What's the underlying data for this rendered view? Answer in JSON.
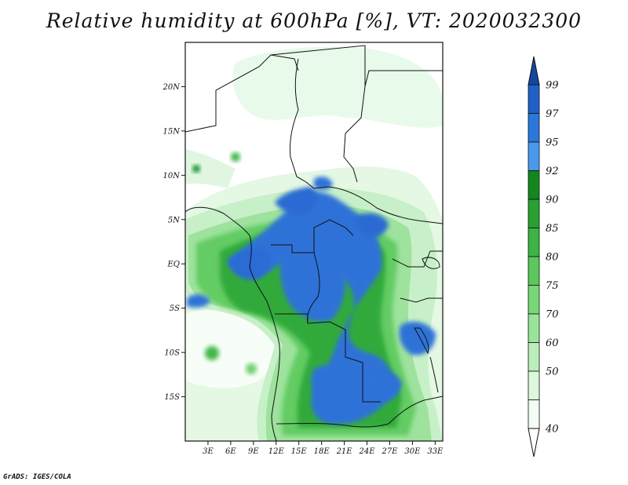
{
  "title": "Relative humidity at 600hPa [%], VT: 2020032300",
  "credit": "GrADS: IGES/COLA",
  "map": {
    "lon_range": [
      0,
      34
    ],
    "lat_range": [
      -20,
      25
    ],
    "lat_labels": [
      "20N",
      "15N",
      "10N",
      "5N",
      "EQ",
      "5S",
      "10S",
      "15S"
    ],
    "lat_values": [
      20,
      15,
      10,
      5,
      0,
      -5,
      -10,
      -15
    ],
    "lon_labels": [
      "3E",
      "6E",
      "9E",
      "12E",
      "15E",
      "18E",
      "21E",
      "24E",
      "27E",
      "30E",
      "33E"
    ],
    "lon_values": [
      3,
      6,
      9,
      12,
      15,
      18,
      21,
      24,
      27,
      30,
      33
    ]
  },
  "colorbar": {
    "labels": [
      "99",
      "97",
      "95",
      "92",
      "90",
      "85",
      "80",
      "75",
      "70",
      "60",
      "50",
      "40"
    ],
    "colors": [
      "#2060c8",
      "#2a78dc",
      "#4a98ec",
      "#14861e",
      "#28a032",
      "#3cb446",
      "#5ac85a",
      "#78d878",
      "#9ae49a",
      "#bceebc",
      "#dcf8dc",
      "#f2fcf2"
    ],
    "top_arrow_color": "#1446a0",
    "bottom_arrow_color": "#ffffff"
  }
}
